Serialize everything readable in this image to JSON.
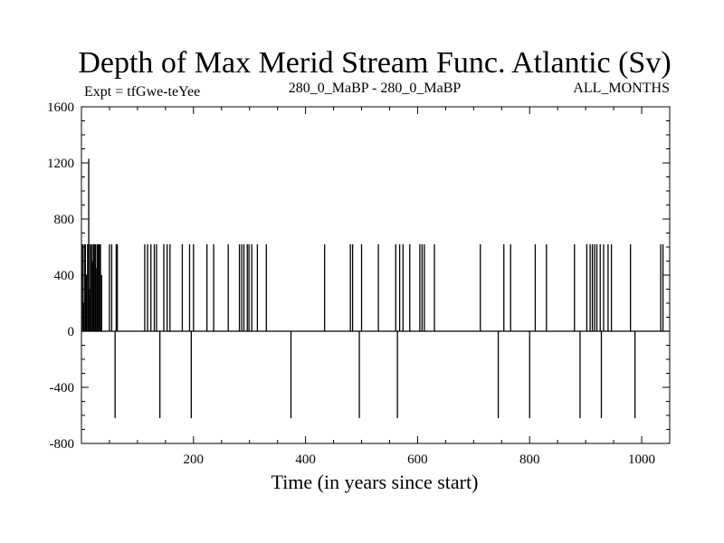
{
  "chart_data": {
    "type": "line",
    "title": "Depth of Max Merid Stream Func. Atlantic (Sv)",
    "subtitle_left": "Expt = tfGwe-teYee",
    "subtitle_center": "280_0_MaBP - 280_0_MaBP",
    "subtitle_right": "ALL_MONTHS",
    "xlabel": "Time (in years since start)",
    "ylabel": "",
    "xlim": [
      0,
      1050
    ],
    "ylim": [
      -800,
      1600
    ],
    "xticks": [
      200,
      400,
      600,
      800,
      1000
    ],
    "yticks": [
      -800,
      -400,
      0,
      400,
      800,
      1200,
      1600
    ],
    "grid": false,
    "line_color": "#000000",
    "series": [
      {
        "baseline": 0,
        "pulses": [
          {
            "x": 2,
            "y": 620
          },
          {
            "x": 4,
            "y": 200
          },
          {
            "x": 5,
            "y": 620
          },
          {
            "x": 7,
            "y": 620
          },
          {
            "x": 9,
            "y": 400
          },
          {
            "x": 11,
            "y": 620
          },
          {
            "x": 13,
            "y": 620
          },
          {
            "x": 14,
            "y": 300
          },
          {
            "x": 16,
            "y": 620
          },
          {
            "x": 18,
            "y": 620
          },
          {
            "x": 20,
            "y": 500
          },
          {
            "x": 21,
            "y": 620
          },
          {
            "x": 23,
            "y": 620
          },
          {
            "x": 25,
            "y": 620
          },
          {
            "x": 26,
            "y": 450
          },
          {
            "x": 28,
            "y": 620
          },
          {
            "x": 30,
            "y": 620
          },
          {
            "x": 32,
            "y": 620
          },
          {
            "x": 34,
            "y": 620
          },
          {
            "x": 36,
            "y": 400
          },
          {
            "x": 13,
            "y": 1230
          },
          {
            "x": 22,
            "y": 620
          },
          {
            "x": 50,
            "y": 620
          },
          {
            "x": 54,
            "y": 620
          },
          {
            "x": 60,
            "y": -620
          },
          {
            "x": 62,
            "y": 620
          },
          {
            "x": 64,
            "y": 620
          },
          {
            "x": 113,
            "y": 620
          },
          {
            "x": 118,
            "y": 620
          },
          {
            "x": 124,
            "y": 620
          },
          {
            "x": 130,
            "y": 620
          },
          {
            "x": 134,
            "y": 620
          },
          {
            "x": 140,
            "y": -620
          },
          {
            "x": 147,
            "y": 620
          },
          {
            "x": 153,
            "y": 620
          },
          {
            "x": 158,
            "y": 620
          },
          {
            "x": 180,
            "y": 620
          },
          {
            "x": 193,
            "y": 620
          },
          {
            "x": 196,
            "y": -620
          },
          {
            "x": 200,
            "y": 620
          },
          {
            "x": 224,
            "y": 620
          },
          {
            "x": 236,
            "y": 620
          },
          {
            "x": 262,
            "y": 620
          },
          {
            "x": 282,
            "y": 620
          },
          {
            "x": 286,
            "y": 620
          },
          {
            "x": 290,
            "y": 620
          },
          {
            "x": 296,
            "y": 620
          },
          {
            "x": 299,
            "y": 620
          },
          {
            "x": 304,
            "y": 620
          },
          {
            "x": 314,
            "y": 620
          },
          {
            "x": 330,
            "y": 620
          },
          {
            "x": 374,
            "y": -620
          },
          {
            "x": 434,
            "y": 620
          },
          {
            "x": 480,
            "y": 620
          },
          {
            "x": 484,
            "y": 620
          },
          {
            "x": 496,
            "y": -620
          },
          {
            "x": 500,
            "y": 620
          },
          {
            "x": 530,
            "y": 620
          },
          {
            "x": 561,
            "y": 620
          },
          {
            "x": 564,
            "y": -620
          },
          {
            "x": 568,
            "y": 620
          },
          {
            "x": 574,
            "y": 620
          },
          {
            "x": 586,
            "y": 620
          },
          {
            "x": 604,
            "y": 620
          },
          {
            "x": 608,
            "y": 620
          },
          {
            "x": 612,
            "y": 620
          },
          {
            "x": 630,
            "y": 620
          },
          {
            "x": 712,
            "y": 620
          },
          {
            "x": 744,
            "y": -620
          },
          {
            "x": 754,
            "y": 620
          },
          {
            "x": 766,
            "y": 620
          },
          {
            "x": 800,
            "y": -620
          },
          {
            "x": 810,
            "y": 620
          },
          {
            "x": 830,
            "y": 620
          },
          {
            "x": 880,
            "y": 620
          },
          {
            "x": 890,
            "y": -620
          },
          {
            "x": 902,
            "y": 620
          },
          {
            "x": 908,
            "y": 620
          },
          {
            "x": 912,
            "y": 620
          },
          {
            "x": 916,
            "y": 620
          },
          {
            "x": 920,
            "y": 620
          },
          {
            "x": 926,
            "y": 620
          },
          {
            "x": 928,
            "y": -620
          },
          {
            "x": 932,
            "y": 620
          },
          {
            "x": 940,
            "y": 620
          },
          {
            "x": 946,
            "y": 620
          },
          {
            "x": 980,
            "y": 620
          },
          {
            "x": 988,
            "y": -620
          },
          {
            "x": 1034,
            "y": 620
          },
          {
            "x": 1038,
            "y": 620
          }
        ]
      }
    ]
  }
}
